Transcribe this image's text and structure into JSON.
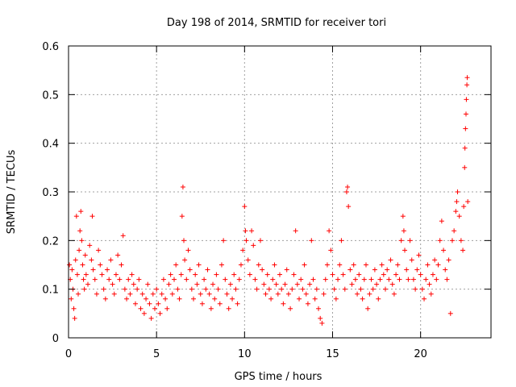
{
  "chart_data": {
    "type": "scatter",
    "title": "Day 198 of 2014, SRMTID for receiver tori",
    "xlabel": "GPS time / hours",
    "ylabel": "SRMTID / TECUs",
    "xlim": [
      0,
      24
    ],
    "ylim": [
      0,
      0.6
    ],
    "xticks": [
      0,
      5,
      10,
      15,
      20
    ],
    "xtick_labels": [
      "0",
      "5",
      "10",
      "15",
      "20"
    ],
    "yticks": [
      0,
      0.1,
      0.2,
      0.3,
      0.4,
      0.5,
      0.6
    ],
    "ytick_labels": [
      "0",
      "0.1",
      "0.2",
      "0.3",
      "0.4",
      "0.5",
      "0.6"
    ],
    "grid": true,
    "marker": "+",
    "series": [
      {
        "name": "SRMTID",
        "color": "#ff0000",
        "points": [
          [
            0.05,
            0.15
          ],
          [
            0.1,
            0.12
          ],
          [
            0.15,
            0.08
          ],
          [
            0.2,
            0.14
          ],
          [
            0.25,
            0.1
          ],
          [
            0.3,
            0.06
          ],
          [
            0.35,
            0.04
          ],
          [
            0.4,
            0.16
          ],
          [
            0.45,
            0.25
          ],
          [
            0.5,
            0.13
          ],
          [
            0.55,
            0.09
          ],
          [
            0.6,
            0.18
          ],
          [
            0.65,
            0.22
          ],
          [
            0.7,
            0.26
          ],
          [
            0.75,
            0.2
          ],
          [
            0.8,
            0.15
          ],
          [
            0.85,
            0.12
          ],
          [
            0.9,
            0.1
          ],
          [
            0.95,
            0.17
          ],
          [
            1.0,
            0.13
          ],
          [
            1.1,
            0.11
          ],
          [
            1.2,
            0.19
          ],
          [
            1.3,
            0.16
          ],
          [
            1.35,
            0.25
          ],
          [
            1.4,
            0.14
          ],
          [
            1.5,
            0.12
          ],
          [
            1.6,
            0.09
          ],
          [
            1.7,
            0.18
          ],
          [
            1.8,
            0.15
          ],
          [
            1.9,
            0.13
          ],
          [
            2.0,
            0.1
          ],
          [
            2.1,
            0.08
          ],
          [
            2.2,
            0.14
          ],
          [
            2.3,
            0.12
          ],
          [
            2.4,
            0.16
          ],
          [
            2.5,
            0.11
          ],
          [
            2.6,
            0.09
          ],
          [
            2.7,
            0.13
          ],
          [
            2.8,
            0.17
          ],
          [
            2.9,
            0.12
          ],
          [
            3.0,
            0.15
          ],
          [
            3.1,
            0.21
          ],
          [
            3.2,
            0.1
          ],
          [
            3.3,
            0.08
          ],
          [
            3.4,
            0.12
          ],
          [
            3.5,
            0.09
          ],
          [
            3.6,
            0.13
          ],
          [
            3.7,
            0.11
          ],
          [
            3.8,
            0.07
          ],
          [
            3.9,
            0.1
          ],
          [
            4.0,
            0.12
          ],
          [
            4.1,
            0.06
          ],
          [
            4.2,
            0.09
          ],
          [
            4.3,
            0.05
          ],
          [
            4.4,
            0.08
          ],
          [
            4.5,
            0.11
          ],
          [
            4.6,
            0.07
          ],
          [
            4.7,
            0.04
          ],
          [
            4.8,
            0.09
          ],
          [
            4.9,
            0.06
          ],
          [
            5.0,
            0.1
          ],
          [
            5.1,
            0.07
          ],
          [
            5.2,
            0.05
          ],
          [
            5.3,
            0.09
          ],
          [
            5.4,
            0.12
          ],
          [
            5.5,
            0.08
          ],
          [
            5.6,
            0.06
          ],
          [
            5.7,
            0.11
          ],
          [
            5.8,
            0.13
          ],
          [
            5.9,
            0.09
          ],
          [
            6.0,
            0.12
          ],
          [
            6.1,
            0.15
          ],
          [
            6.2,
            0.1
          ],
          [
            6.3,
            0.08
          ],
          [
            6.4,
            0.13
          ],
          [
            6.45,
            0.25
          ],
          [
            6.5,
            0.31
          ],
          [
            6.55,
            0.2
          ],
          [
            6.6,
            0.16
          ],
          [
            6.7,
            0.12
          ],
          [
            6.8,
            0.18
          ],
          [
            6.9,
            0.14
          ],
          [
            7.0,
            0.1
          ],
          [
            7.1,
            0.08
          ],
          [
            7.2,
            0.13
          ],
          [
            7.3,
            0.11
          ],
          [
            7.4,
            0.15
          ],
          [
            7.5,
            0.09
          ],
          [
            7.6,
            0.07
          ],
          [
            7.7,
            0.12
          ],
          [
            7.8,
            0.1
          ],
          [
            7.9,
            0.14
          ],
          [
            8.0,
            0.09
          ],
          [
            8.1,
            0.06
          ],
          [
            8.2,
            0.11
          ],
          [
            8.3,
            0.08
          ],
          [
            8.4,
            0.13
          ],
          [
            8.5,
            0.1
          ],
          [
            8.6,
            0.07
          ],
          [
            8.7,
            0.15
          ],
          [
            8.8,
            0.2
          ],
          [
            8.9,
            0.12
          ],
          [
            9.0,
            0.09
          ],
          [
            9.1,
            0.06
          ],
          [
            9.2,
            0.11
          ],
          [
            9.3,
            0.08
          ],
          [
            9.4,
            0.13
          ],
          [
            9.5,
            0.1
          ],
          [
            9.6,
            0.07
          ],
          [
            9.7,
            0.12
          ],
          [
            9.8,
            0.15
          ],
          [
            9.9,
            0.18
          ],
          [
            10.0,
            0.27
          ],
          [
            10.05,
            0.22
          ],
          [
            10.1,
            0.2
          ],
          [
            10.2,
            0.16
          ],
          [
            10.3,
            0.13
          ],
          [
            10.4,
            0.22
          ],
          [
            10.5,
            0.19
          ],
          [
            10.6,
            0.12
          ],
          [
            10.7,
            0.1
          ],
          [
            10.8,
            0.15
          ],
          [
            10.9,
            0.2
          ],
          [
            11.0,
            0.14
          ],
          [
            11.1,
            0.11
          ],
          [
            11.2,
            0.09
          ],
          [
            11.3,
            0.13
          ],
          [
            11.4,
            0.1
          ],
          [
            11.5,
            0.08
          ],
          [
            11.6,
            0.12
          ],
          [
            11.7,
            0.15
          ],
          [
            11.8,
            0.11
          ],
          [
            11.9,
            0.09
          ],
          [
            12.0,
            0.13
          ],
          [
            12.1,
            0.1
          ],
          [
            12.2,
            0.07
          ],
          [
            12.3,
            0.11
          ],
          [
            12.4,
            0.14
          ],
          [
            12.5,
            0.09
          ],
          [
            12.6,
            0.06
          ],
          [
            12.7,
            0.1
          ],
          [
            12.8,
            0.13
          ],
          [
            12.9,
            0.22
          ],
          [
            13.0,
            0.11
          ],
          [
            13.1,
            0.08
          ],
          [
            13.2,
            0.12
          ],
          [
            13.3,
            0.1
          ],
          [
            13.4,
            0.15
          ],
          [
            13.5,
            0.09
          ],
          [
            13.6,
            0.07
          ],
          [
            13.7,
            0.11
          ],
          [
            13.8,
            0.2
          ],
          [
            13.9,
            0.12
          ],
          [
            14.0,
            0.08
          ],
          [
            14.1,
            0.1
          ],
          [
            14.2,
            0.06
          ],
          [
            14.3,
            0.04
          ],
          [
            14.4,
            0.03
          ],
          [
            14.5,
            0.09
          ],
          [
            14.6,
            0.12
          ],
          [
            14.7,
            0.15
          ],
          [
            14.8,
            0.22
          ],
          [
            14.9,
            0.18
          ],
          [
            15.0,
            0.13
          ],
          [
            15.1,
            0.1
          ],
          [
            15.2,
            0.08
          ],
          [
            15.3,
            0.12
          ],
          [
            15.4,
            0.15
          ],
          [
            15.5,
            0.2
          ],
          [
            15.6,
            0.13
          ],
          [
            15.7,
            0.1
          ],
          [
            15.8,
            0.3
          ],
          [
            15.85,
            0.31
          ],
          [
            15.9,
            0.27
          ],
          [
            16.0,
            0.14
          ],
          [
            16.1,
            0.11
          ],
          [
            16.2,
            0.15
          ],
          [
            16.3,
            0.12
          ],
          [
            16.4,
            0.09
          ],
          [
            16.5,
            0.13
          ],
          [
            16.6,
            0.1
          ],
          [
            16.7,
            0.08
          ],
          [
            16.8,
            0.12
          ],
          [
            16.9,
            0.15
          ],
          [
            17.0,
            0.06
          ],
          [
            17.1,
            0.09
          ],
          [
            17.2,
            0.12
          ],
          [
            17.3,
            0.1
          ],
          [
            17.4,
            0.14
          ],
          [
            17.5,
            0.11
          ],
          [
            17.6,
            0.08
          ],
          [
            17.7,
            0.12
          ],
          [
            17.8,
            0.15
          ],
          [
            17.9,
            0.13
          ],
          [
            18.0,
            0.1
          ],
          [
            18.1,
            0.14
          ],
          [
            18.2,
            0.12
          ],
          [
            18.3,
            0.16
          ],
          [
            18.4,
            0.11
          ],
          [
            18.5,
            0.09
          ],
          [
            18.6,
            0.13
          ],
          [
            18.7,
            0.15
          ],
          [
            18.8,
            0.12
          ],
          [
            18.9,
            0.2
          ],
          [
            19.0,
            0.25
          ],
          [
            19.05,
            0.22
          ],
          [
            19.1,
            0.18
          ],
          [
            19.2,
            0.14
          ],
          [
            19.3,
            0.12
          ],
          [
            19.4,
            0.2
          ],
          [
            19.5,
            0.16
          ],
          [
            19.6,
            0.12
          ],
          [
            19.7,
            0.1
          ],
          [
            19.8,
            0.14
          ],
          [
            19.9,
            0.17
          ],
          [
            20.0,
            0.13
          ],
          [
            20.1,
            0.1
          ],
          [
            20.2,
            0.08
          ],
          [
            20.3,
            0.12
          ],
          [
            20.4,
            0.15
          ],
          [
            20.5,
            0.11
          ],
          [
            20.6,
            0.09
          ],
          [
            20.7,
            0.13
          ],
          [
            20.8,
            0.16
          ],
          [
            20.9,
            0.12
          ],
          [
            21.0,
            0.15
          ],
          [
            21.1,
            0.2
          ],
          [
            21.2,
            0.24
          ],
          [
            21.3,
            0.18
          ],
          [
            21.4,
            0.14
          ],
          [
            21.5,
            0.12
          ],
          [
            21.6,
            0.16
          ],
          [
            21.7,
            0.05
          ],
          [
            21.8,
            0.2
          ],
          [
            21.9,
            0.22
          ],
          [
            22.0,
            0.26
          ],
          [
            22.05,
            0.28
          ],
          [
            22.1,
            0.3
          ],
          [
            22.2,
            0.25
          ],
          [
            22.3,
            0.2
          ],
          [
            22.4,
            0.18
          ],
          [
            22.45,
            0.27
          ],
          [
            22.5,
            0.35
          ],
          [
            22.52,
            0.39
          ],
          [
            22.55,
            0.43
          ],
          [
            22.58,
            0.46
          ],
          [
            22.6,
            0.49
          ],
          [
            22.63,
            0.52
          ],
          [
            22.65,
            0.535
          ],
          [
            22.68,
            0.28
          ]
        ]
      }
    ]
  }
}
